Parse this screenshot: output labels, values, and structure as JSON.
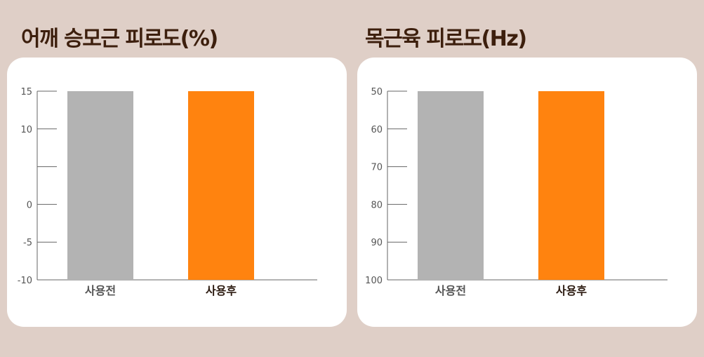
{
  "chart_data": [
    {
      "type": "bar",
      "title": "어깨 승모근 피로도(%)",
      "xlabel": "",
      "ylabel": "",
      "categories": [
        "사용전",
        "사용후"
      ],
      "values": [
        15,
        15
      ],
      "ylim": [
        -10,
        15
      ],
      "y_tick_values": [
        15,
        10,
        5,
        0,
        -5,
        -10
      ],
      "y_tick_labels": [
        "15",
        "10",
        "",
        "0",
        "-5",
        "-10"
      ],
      "colors": [
        "#b3b3b3",
        "#ff830f"
      ],
      "label_colors": [
        "#555555",
        "#2b1a10"
      ],
      "grid": false
    },
    {
      "type": "bar",
      "title": "목근육 피로도(Hz)",
      "xlabel": "",
      "ylabel": "",
      "categories": [
        "사용전",
        "사용후"
      ],
      "values": [
        50,
        50
      ],
      "ylim": [
        50,
        100
      ],
      "y_inverted": true,
      "y_tick_values": [
        50,
        60,
        70,
        80,
        90,
        100
      ],
      "y_tick_labels": [
        "50",
        "60",
        "70",
        "80",
        "90",
        "100"
      ],
      "colors": [
        "#b3b3b3",
        "#ff830f"
      ],
      "label_colors": [
        "#555555",
        "#2b1a10"
      ],
      "grid": false
    }
  ],
  "background_color": "#dfcfc7",
  "title_color": "#3d1f0d"
}
